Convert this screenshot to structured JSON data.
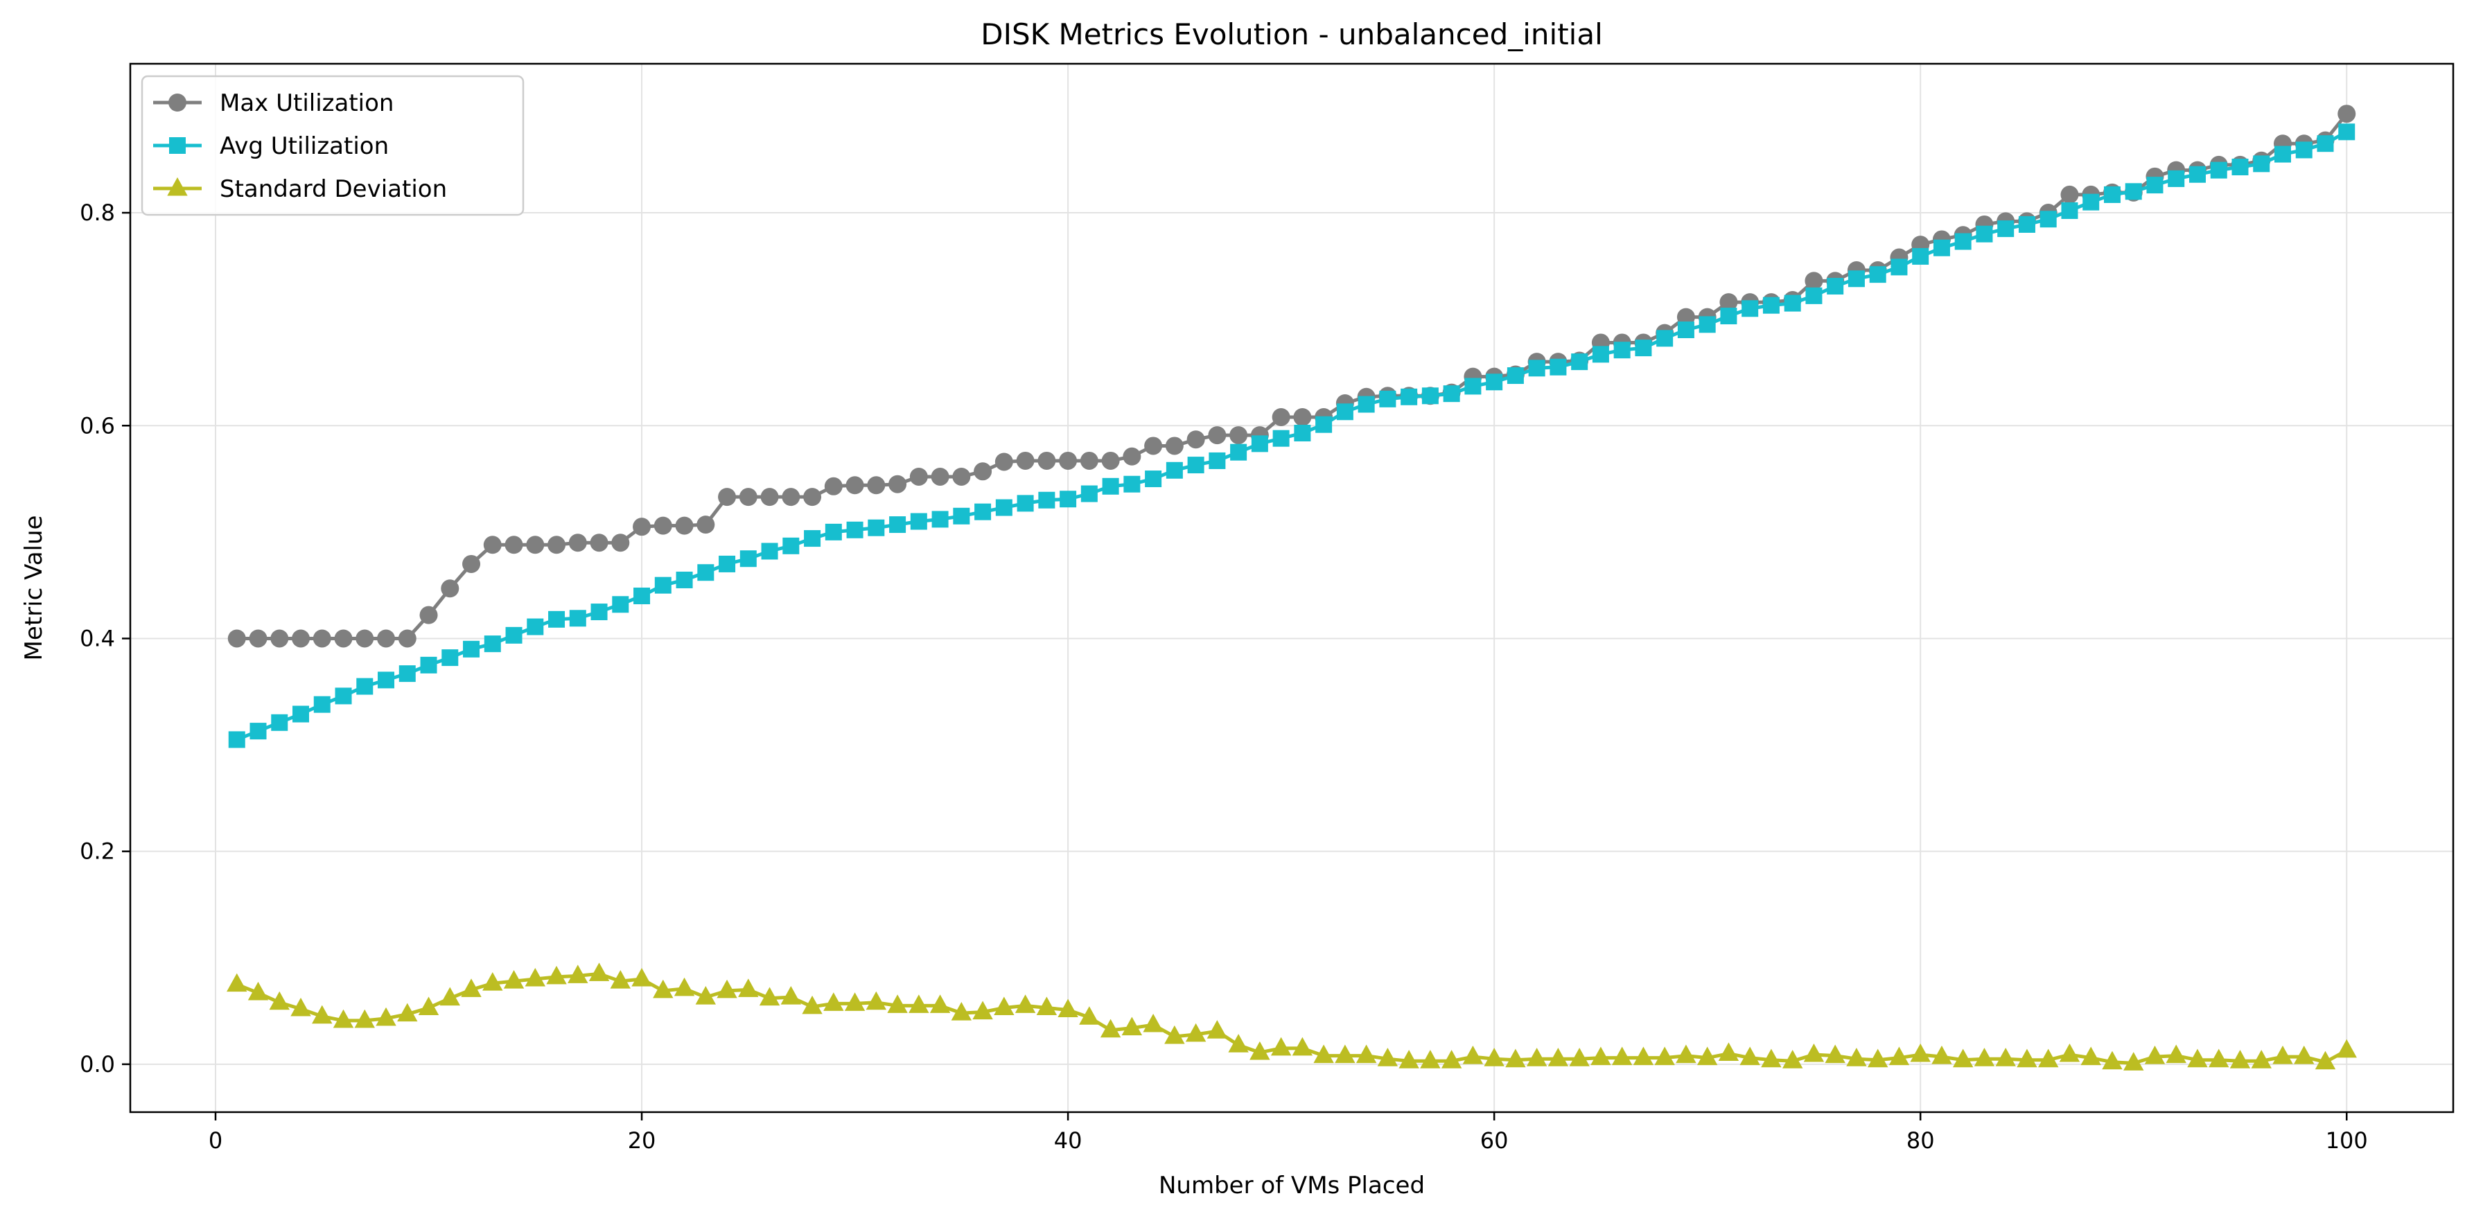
{
  "chart_data": {
    "type": "line",
    "title": "DISK Metrics Evolution - unbalanced_initial",
    "xlabel": "Number of VMs Placed",
    "ylabel": "Metric Value",
    "xlim": [
      -4,
      105
    ],
    "ylim": [
      -0.045,
      0.94
    ],
    "xticks": [
      0,
      20,
      40,
      60,
      80,
      100
    ],
    "yticks": [
      0.0,
      0.2,
      0.4,
      0.6,
      0.8
    ],
    "grid": true,
    "legend_position": "upper-left",
    "x": [
      1,
      2,
      3,
      4,
      5,
      6,
      7,
      8,
      9,
      10,
      11,
      12,
      13,
      14,
      15,
      16,
      17,
      18,
      19,
      20,
      21,
      22,
      23,
      24,
      25,
      26,
      27,
      28,
      29,
      30,
      31,
      32,
      33,
      34,
      35,
      36,
      37,
      38,
      39,
      40,
      41,
      42,
      43,
      44,
      45,
      46,
      47,
      48,
      49,
      50,
      51,
      52,
      53,
      54,
      55,
      56,
      57,
      58,
      59,
      60,
      61,
      62,
      63,
      64,
      65,
      66,
      67,
      68,
      69,
      70,
      71,
      72,
      73,
      74,
      75,
      76,
      77,
      78,
      79,
      80,
      81,
      82,
      83,
      84,
      85,
      86,
      87,
      88,
      89,
      90,
      91,
      92,
      93,
      94,
      95,
      96,
      97,
      98,
      99,
      100
    ],
    "series": [
      {
        "name": "Max Utilization",
        "color": "#7f7f7f",
        "marker": "circle",
        "values": [
          0.4,
          0.4,
          0.4,
          0.4,
          0.4,
          0.4,
          0.4,
          0.4,
          0.4,
          0.422,
          0.447,
          0.47,
          0.488,
          0.488,
          0.488,
          0.488,
          0.49,
          0.49,
          0.49,
          0.505,
          0.506,
          0.506,
          0.507,
          0.533,
          0.533,
          0.533,
          0.533,
          0.533,
          0.543,
          0.544,
          0.544,
          0.545,
          0.552,
          0.552,
          0.552,
          0.557,
          0.566,
          0.567,
          0.567,
          0.567,
          0.567,
          0.567,
          0.571,
          0.581,
          0.581,
          0.587,
          0.591,
          0.591,
          0.591,
          0.608,
          0.608,
          0.608,
          0.621,
          0.627,
          0.628,
          0.628,
          0.628,
          0.631,
          0.646,
          0.646,
          0.648,
          0.66,
          0.66,
          0.661,
          0.678,
          0.678,
          0.678,
          0.687,
          0.702,
          0.702,
          0.716,
          0.716,
          0.716,
          0.718,
          0.736,
          0.736,
          0.746,
          0.746,
          0.758,
          0.77,
          0.775,
          0.779,
          0.789,
          0.792,
          0.792,
          0.8,
          0.817,
          0.817,
          0.819,
          0.819,
          0.834,
          0.84,
          0.84,
          0.845,
          0.845,
          0.849,
          0.865,
          0.865,
          0.868,
          0.893
        ]
      },
      {
        "name": "Avg Utilization",
        "color": "#17becf",
        "marker": "square",
        "values": [
          0.305,
          0.313,
          0.321,
          0.329,
          0.338,
          0.346,
          0.355,
          0.361,
          0.367,
          0.375,
          0.382,
          0.39,
          0.395,
          0.403,
          0.411,
          0.418,
          0.419,
          0.425,
          0.432,
          0.44,
          0.45,
          0.455,
          0.462,
          0.47,
          0.475,
          0.482,
          0.487,
          0.494,
          0.5,
          0.502,
          0.504,
          0.507,
          0.51,
          0.512,
          0.515,
          0.519,
          0.523,
          0.527,
          0.53,
          0.531,
          0.536,
          0.543,
          0.545,
          0.55,
          0.558,
          0.563,
          0.567,
          0.575,
          0.583,
          0.588,
          0.593,
          0.601,
          0.613,
          0.62,
          0.625,
          0.627,
          0.628,
          0.63,
          0.637,
          0.641,
          0.647,
          0.654,
          0.655,
          0.66,
          0.667,
          0.671,
          0.673,
          0.682,
          0.69,
          0.695,
          0.703,
          0.71,
          0.713,
          0.715,
          0.722,
          0.731,
          0.738,
          0.742,
          0.749,
          0.759,
          0.767,
          0.773,
          0.78,
          0.785,
          0.789,
          0.794,
          0.802,
          0.81,
          0.817,
          0.82,
          0.826,
          0.832,
          0.836,
          0.84,
          0.843,
          0.846,
          0.855,
          0.859,
          0.865,
          0.876
        ]
      },
      {
        "name": "Standard Deviation",
        "color": "#bcbd22",
        "marker": "triangle",
        "values": [
          0.075,
          0.067,
          0.058,
          0.052,
          0.045,
          0.041,
          0.041,
          0.043,
          0.047,
          0.053,
          0.062,
          0.07,
          0.076,
          0.078,
          0.08,
          0.082,
          0.083,
          0.085,
          0.078,
          0.08,
          0.069,
          0.071,
          0.063,
          0.069,
          0.07,
          0.062,
          0.063,
          0.054,
          0.057,
          0.057,
          0.058,
          0.055,
          0.055,
          0.055,
          0.048,
          0.049,
          0.053,
          0.055,
          0.053,
          0.051,
          0.044,
          0.032,
          0.034,
          0.037,
          0.026,
          0.028,
          0.031,
          0.018,
          0.011,
          0.015,
          0.015,
          0.008,
          0.008,
          0.008,
          0.005,
          0.003,
          0.003,
          0.003,
          0.007,
          0.005,
          0.004,
          0.005,
          0.005,
          0.005,
          0.006,
          0.006,
          0.006,
          0.006,
          0.008,
          0.006,
          0.01,
          0.006,
          0.004,
          0.003,
          0.009,
          0.008,
          0.005,
          0.004,
          0.006,
          0.009,
          0.007,
          0.004,
          0.005,
          0.005,
          0.004,
          0.004,
          0.009,
          0.006,
          0.002,
          0.001,
          0.007,
          0.008,
          0.004,
          0.004,
          0.003,
          0.003,
          0.007,
          0.007,
          0.002,
          0.013
        ]
      }
    ]
  }
}
